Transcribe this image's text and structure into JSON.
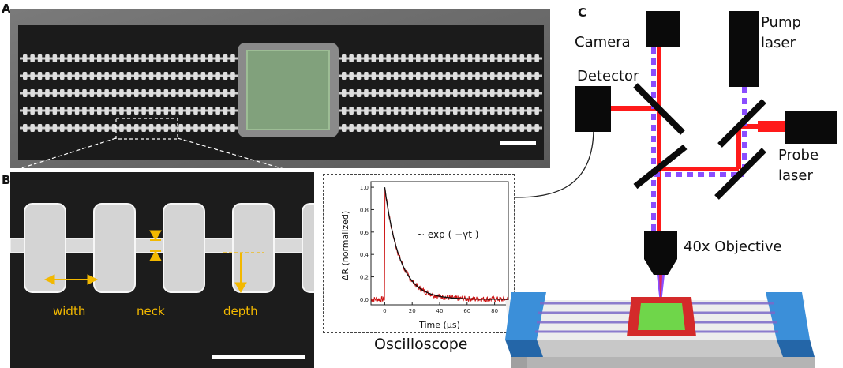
{
  "panels": {
    "a": {
      "letter": "A"
    },
    "b": {
      "letter": "B",
      "labels": {
        "width": "width",
        "neck": "neck",
        "depth": "depth"
      }
    },
    "c": {
      "letter": "C"
    }
  },
  "setup": {
    "camera": "Camera",
    "pump_laser": [
      "Pump",
      "laser"
    ],
    "detector": "Detector",
    "probe_laser": [
      "Probe",
      "laser"
    ],
    "objective": "40x Objective",
    "oscilloscope": "Oscilloscope"
  },
  "chart_data": {
    "type": "line",
    "xlabel": "Time (μs)",
    "ylabel": "ΔR (normalized)",
    "xlim": [
      -10,
      90
    ],
    "ylim": [
      -0.05,
      1.05
    ],
    "xticks": [
      0,
      20,
      40,
      60,
      80
    ],
    "yticks": [
      0.0,
      0.2,
      0.4,
      0.6,
      0.8,
      1.0
    ],
    "annotation": "~  exp ( −γt )",
    "series": [
      {
        "type": "noisy-data",
        "color": "#cc1111",
        "onset": 0,
        "peak": 1.0,
        "decay_constant_us": 11
      },
      {
        "type": "fit",
        "color": "#111111",
        "onset": 0,
        "peak": 1.0,
        "decay_constant_us": 11
      }
    ]
  },
  "colors": {
    "highlight": "#f2b800",
    "pump_beam": "#8a4dff",
    "probe_beam": "#ff1a1a",
    "device_green": "#6fd64a",
    "electrode_blue": "#3b8fd9"
  }
}
